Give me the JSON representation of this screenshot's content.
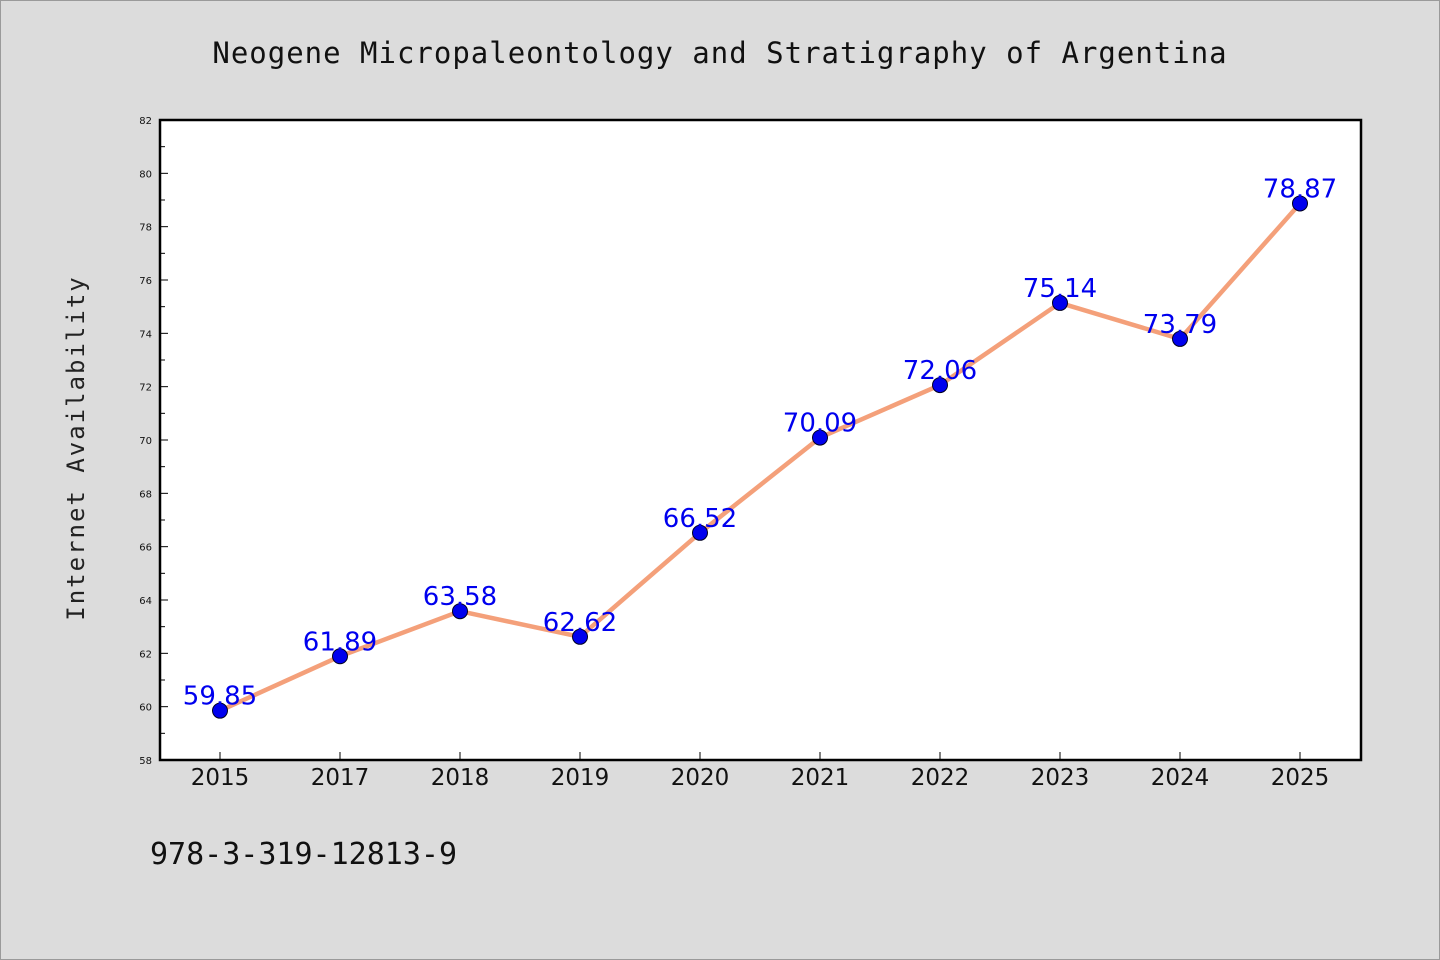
{
  "chart_data": {
    "type": "line",
    "title": "Neogene Micropaleontology and Stratigraphy of Argentina",
    "xlabel": "",
    "ylabel": "Internet Availability",
    "categories": [
      "2015",
      "2017",
      "2018",
      "2019",
      "2020",
      "2021",
      "2022",
      "2023",
      "2024",
      "2025"
    ],
    "series": [
      {
        "values": [
          59.85,
          61.89,
          63.58,
          62.62,
          66.52,
          70.09,
          72.06,
          75.14,
          73.79,
          78.87
        ]
      }
    ],
    "ylim": [
      58,
      82
    ],
    "yticks": [
      58,
      60,
      62,
      64,
      66,
      68,
      70,
      72,
      74,
      76,
      78,
      80,
      82
    ],
    "grid": false,
    "legend": "none",
    "data_labels": true
  },
  "footnote": "978-3-319-12813-9",
  "colors": {
    "background": "#dcdcdc",
    "plot_background": "#ffffff",
    "line": "#f4a07a",
    "marker": "#0000ee",
    "data_label": "#0000ee"
  }
}
